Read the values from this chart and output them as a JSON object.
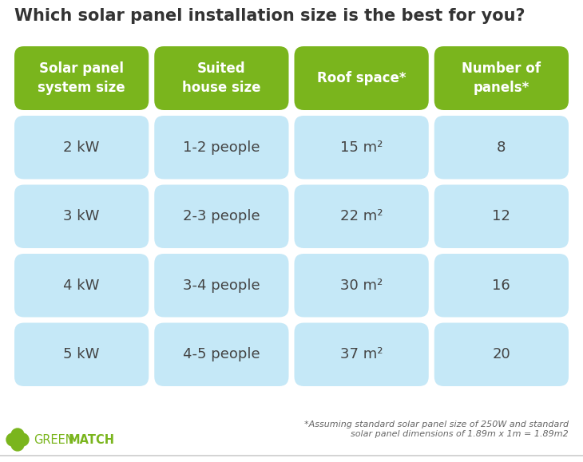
{
  "title": "Which solar panel installation size is the best for you?",
  "title_fontsize": 15,
  "title_color": "#333333",
  "bg_color": "#ffffff",
  "header_bg": "#7ab51d",
  "header_text_color": "#ffffff",
  "cell_bg": "#c5e8f7",
  "cell_text_color": "#444444",
  "headers": [
    "Solar panel\nsystem size",
    "Suited\nhouse size",
    "Roof space*",
    "Number of\npanels*"
  ],
  "rows": [
    [
      "2 kW",
      "1-2 people",
      "15 m²",
      "8"
    ],
    [
      "3 kW",
      "2-3 people",
      "22 m²",
      "12"
    ],
    [
      "4 kW",
      "3-4 people",
      "30 m²",
      "16"
    ],
    [
      "5 kW",
      "4-5 people",
      "37 m²",
      "20"
    ]
  ],
  "footnote_line1": "*Assuming standard solar panel size of 250W and standard",
  "footnote_line2": "solar panel dimensions of 1.89m x 1m = 1.89m2",
  "footnote_color": "#666666",
  "logo_color": "#7ab51d",
  "cell_fontsize": 13,
  "header_fontsize": 12,
  "footnote_fontsize": 8,
  "logo_fontsize": 10.5
}
